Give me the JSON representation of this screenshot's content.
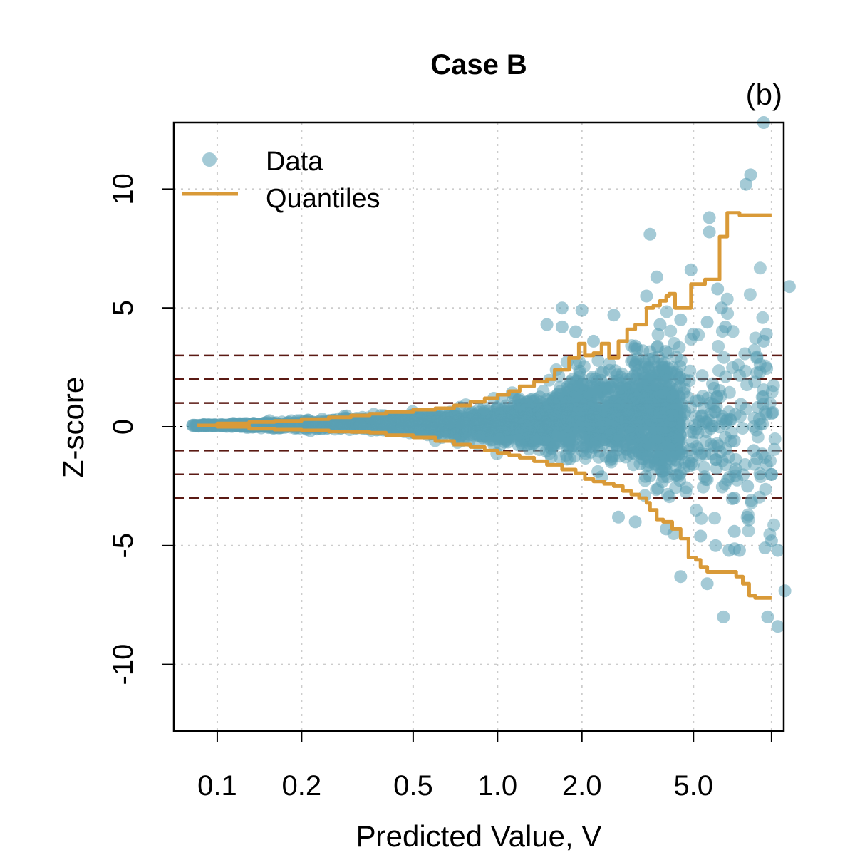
{
  "chart_data": {
    "type": "scatter",
    "title": "Case B",
    "panel_label": "(b)",
    "xlabel": "Predicted Value, V",
    "ylabel": "Z-score",
    "x_scale": "log",
    "xlim": [
      0.07,
      10.5
    ],
    "ylim": [
      -12.8,
      12.8
    ],
    "x_ticks": [
      {
        "value": 0.1,
        "label": "0.1"
      },
      {
        "value": 0.2,
        "label": "0.2"
      },
      {
        "value": 0.5,
        "label": "0.5"
      },
      {
        "value": 1.0,
        "label": "1.0"
      },
      {
        "value": 2.0,
        "label": "2.0"
      },
      {
        "value": 5.0,
        "label": "5.0"
      },
      {
        "value": 9.5,
        "label": ""
      }
    ],
    "y_ticks": [
      {
        "value": -10,
        "label": "-10"
      },
      {
        "value": -5,
        "label": "-5"
      },
      {
        "value": 0,
        "label": "0"
      },
      {
        "value": 5,
        "label": "5"
      },
      {
        "value": 10,
        "label": "10"
      }
    ],
    "grid": true,
    "reference_lines": {
      "dashed_dark_red": [
        -3,
        -2,
        -1,
        1,
        2,
        3
      ],
      "dotted_black": [
        0
      ],
      "color": "#5b1a14"
    },
    "legend": {
      "placement": "top-left",
      "entries": [
        {
          "label": "Data",
          "marker": "point",
          "color": "#5a9fb4"
        },
        {
          "label": "Quantiles",
          "marker": "line",
          "color": "#d99a38"
        }
      ]
    },
    "series": [
      {
        "name": "Data",
        "kind": "points",
        "color": "#5a9fb4",
        "outliers": [
          [
            8.9,
            12.8
          ],
          [
            8.0,
            10.6
          ],
          [
            7.7,
            10.2
          ],
          [
            5.7,
            8.8
          ],
          [
            5.7,
            8.2
          ],
          [
            3.5,
            8.1
          ],
          [
            11.0,
            5.9
          ],
          [
            4.9,
            6.6
          ],
          [
            3.7,
            6.3
          ],
          [
            6.1,
            5.8
          ],
          [
            3.4,
            5.5
          ],
          [
            2.0,
            4.9
          ],
          [
            1.7,
            5.0
          ],
          [
            2.6,
            4.7
          ],
          [
            6.3,
            5.0
          ],
          [
            6.5,
            4.2
          ],
          [
            8.9,
            3.6
          ],
          [
            9.1,
            3.9
          ],
          [
            1.5,
            4.3
          ],
          [
            1.7,
            4.2
          ],
          [
            1.9,
            4.0
          ],
          [
            3.8,
            4.3
          ],
          [
            4.5,
            4.5
          ],
          [
            5.0,
            3.9
          ],
          [
            5.6,
            4.4
          ],
          [
            2.2,
            3.6
          ],
          [
            3.1,
            3.4
          ],
          [
            9.6,
            0.6
          ],
          [
            9.5,
            -2.0
          ],
          [
            8.2,
            -1.0
          ],
          [
            7.0,
            -0.6
          ],
          [
            7.8,
            -2.5
          ],
          [
            4.5,
            -6.3
          ],
          [
            5.3,
            -4.6
          ],
          [
            5.6,
            -6.6
          ],
          [
            6.4,
            -8.0
          ],
          [
            6.7,
            -5.2
          ],
          [
            6.0,
            -5.0
          ],
          [
            7.3,
            -5.2
          ],
          [
            7.0,
            -4.4
          ],
          [
            9.0,
            -5.1
          ],
          [
            9.5,
            -4.8
          ],
          [
            9.2,
            -8.0
          ],
          [
            10.0,
            -8.4
          ],
          [
            10.6,
            -6.9
          ],
          [
            10.0,
            -5.2
          ],
          [
            7.0,
            -3.0
          ],
          [
            2.7,
            -3.8
          ],
          [
            3.1,
            -4.0
          ],
          [
            4.0,
            -4.3
          ]
        ]
      },
      {
        "name": "Quantiles",
        "kind": "line",
        "color": "#d99a38",
        "upper": [
          [
            0.085,
            0.06
          ],
          [
            0.1,
            0.14
          ],
          [
            0.13,
            0.2
          ],
          [
            0.16,
            0.25
          ],
          [
            0.2,
            0.32
          ],
          [
            0.25,
            0.4
          ],
          [
            0.3,
            0.48
          ],
          [
            0.35,
            0.55
          ],
          [
            0.4,
            0.62
          ],
          [
            0.5,
            0.72
          ],
          [
            0.6,
            0.78
          ],
          [
            0.7,
            0.9
          ],
          [
            0.8,
            1.05
          ],
          [
            0.9,
            1.2
          ],
          [
            1.0,
            1.35
          ],
          [
            1.1,
            1.5
          ],
          [
            1.2,
            1.7
          ],
          [
            1.35,
            1.9
          ],
          [
            1.5,
            2.0
          ],
          [
            1.6,
            2.4
          ],
          [
            1.8,
            2.9
          ],
          [
            1.95,
            3.5
          ],
          [
            2.05,
            3.0
          ],
          [
            2.2,
            3.1
          ],
          [
            2.35,
            3.5
          ],
          [
            2.5,
            2.9
          ],
          [
            2.7,
            3.6
          ],
          [
            2.9,
            4.1
          ],
          [
            3.1,
            4.3
          ],
          [
            3.3,
            4.3
          ],
          [
            3.4,
            5.0
          ],
          [
            3.6,
            5.1
          ],
          [
            3.8,
            5.3
          ],
          [
            4.0,
            5.5
          ],
          [
            4.1,
            5.6
          ],
          [
            4.3,
            5.0
          ],
          [
            4.5,
            5.0
          ],
          [
            4.9,
            6.0
          ],
          [
            5.2,
            6.0
          ],
          [
            5.5,
            6.2
          ],
          [
            6.0,
            6.2
          ],
          [
            6.2,
            8.0
          ],
          [
            6.4,
            8.0
          ],
          [
            6.6,
            9.0
          ],
          [
            7.0,
            9.0
          ],
          [
            7.3,
            8.9
          ],
          [
            8.5,
            8.9
          ],
          [
            9.5,
            8.9
          ]
        ],
        "lower": [
          [
            0.085,
            0.06
          ],
          [
            0.1,
            0.0
          ],
          [
            0.13,
            -0.08
          ],
          [
            0.16,
            -0.12
          ],
          [
            0.2,
            -0.15
          ],
          [
            0.25,
            -0.2
          ],
          [
            0.3,
            -0.22
          ],
          [
            0.35,
            -0.25
          ],
          [
            0.4,
            -0.35
          ],
          [
            0.5,
            -0.45
          ],
          [
            0.6,
            -0.6
          ],
          [
            0.7,
            -0.75
          ],
          [
            0.8,
            -0.85
          ],
          [
            0.9,
            -1.0
          ],
          [
            1.0,
            -1.1
          ],
          [
            1.1,
            -1.2
          ],
          [
            1.2,
            -1.3
          ],
          [
            1.35,
            -1.45
          ],
          [
            1.5,
            -1.6
          ],
          [
            1.7,
            -1.8
          ],
          [
            1.9,
            -1.95
          ],
          [
            2.05,
            -2.2
          ],
          [
            2.2,
            -2.3
          ],
          [
            2.4,
            -2.4
          ],
          [
            2.6,
            -2.5
          ],
          [
            2.8,
            -2.7
          ],
          [
            3.0,
            -2.85
          ],
          [
            3.2,
            -3.0
          ],
          [
            3.4,
            -3.2
          ],
          [
            3.5,
            -3.5
          ],
          [
            3.7,
            -3.9
          ],
          [
            3.9,
            -4.0
          ],
          [
            4.2,
            -4.3
          ],
          [
            4.5,
            -4.7
          ],
          [
            4.8,
            -5.5
          ],
          [
            5.1,
            -5.6
          ],
          [
            5.3,
            -5.9
          ],
          [
            5.6,
            -6.1
          ],
          [
            6.1,
            -6.1
          ],
          [
            6.8,
            -6.1
          ],
          [
            7.1,
            -6.3
          ],
          [
            7.5,
            -6.6
          ],
          [
            7.9,
            -7.1
          ],
          [
            8.3,
            -7.2
          ],
          [
            9.5,
            -7.2
          ]
        ]
      }
    ]
  }
}
